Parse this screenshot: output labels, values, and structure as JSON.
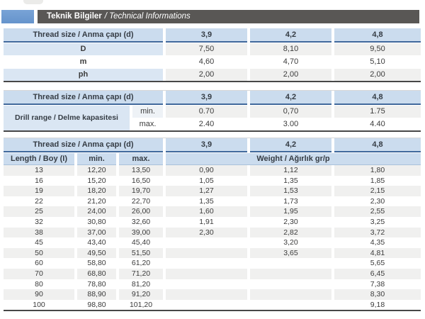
{
  "header": {
    "title_tr": "Teknik Bilgiler",
    "title_en": "/ Technical Informations"
  },
  "colors": {
    "accent_blue": "#79a3d6",
    "accent_blue_2": "#6694cc",
    "bar_gray": "#595755",
    "header_row_blue": "#cbdcee",
    "header_underline_blue": "#41699c",
    "label_cell_blue": "#dae6f3",
    "zebra_gray": "#f0f0ef",
    "table_bottom_border": "#474747"
  },
  "thread": {
    "label": "Thread size / Anma çapı (d)",
    "sizes": [
      "3,9",
      "4,2",
      "4,8"
    ]
  },
  "dimensions_table": {
    "rows": [
      {
        "label": "D",
        "v39": "7,50",
        "v42": "8,10",
        "v48": "9,50"
      },
      {
        "label": "m",
        "v39": "4,60",
        "v42": "4,70",
        "v48": "5,10"
      },
      {
        "label": "ph",
        "v39": "2,00",
        "v42": "2,00",
        "v48": "2,00"
      }
    ]
  },
  "drill_table": {
    "label": "Drill range / Delme kapasitesi",
    "min_label": "min.",
    "max_label": "max.",
    "min": [
      "0.70",
      "0,70",
      "1.75"
    ],
    "max": [
      "2.40",
      "3.00",
      "4.40"
    ]
  },
  "length_table": {
    "length_label": "Length / Boy (I)",
    "min_label": "min.",
    "max_label": "max.",
    "weight_label": "Weight / Ağırlık gr/p",
    "rows": [
      {
        "length": "13",
        "min": "12,20",
        "max": "13,50",
        "w39": "0,90",
        "w42": "1,12",
        "w48": "1,80"
      },
      {
        "length": "16",
        "min": "15,20",
        "max": "16,50",
        "w39": "1,05",
        "w42": "1,35",
        "w48": "1,85"
      },
      {
        "length": "19",
        "min": "18,20",
        "max": "19,70",
        "w39": "1,27",
        "w42": "1,53",
        "w48": "2,15"
      },
      {
        "length": "22",
        "min": "21,20",
        "max": "22,70",
        "w39": "1,35",
        "w42": "1,73",
        "w48": "2,30"
      },
      {
        "length": "25",
        "min": "24,00",
        "max": "26,00",
        "w39": "1,60",
        "w42": "1,95",
        "w48": "2,55"
      },
      {
        "length": "32",
        "min": "30,80",
        "max": "32,60",
        "w39": "1,91",
        "w42": "2,30",
        "w48": "3,25"
      },
      {
        "length": "38",
        "min": "37,00",
        "max": "39,00",
        "w39": "2,30",
        "w42": "2,82",
        "w48": "3,72"
      },
      {
        "length": "45",
        "min": "43,40",
        "max": "45,40",
        "w39": "",
        "w42": "3,20",
        "w48": "4,35"
      },
      {
        "length": "50",
        "min": "49,50",
        "max": "51,50",
        "w39": "",
        "w42": "3,65",
        "w48": "4,81"
      },
      {
        "length": "60",
        "min": "58,80",
        "max": "61,20",
        "w39": "",
        "w42": "",
        "w48": "5,65"
      },
      {
        "length": "70",
        "min": "68,80",
        "max": "71,20",
        "w39": "",
        "w42": "",
        "w48": "6,45"
      },
      {
        "length": "80",
        "min": "78,80",
        "max": "81,20",
        "w39": "",
        "w42": "",
        "w48": "7,38"
      },
      {
        "length": "90",
        "min": "88,90",
        "max": "91,20",
        "w39": "",
        "w42": "",
        "w48": "8,30"
      },
      {
        "length": "100",
        "min": "98,80",
        "max": "101,20",
        "w39": "",
        "w42": "",
        "w48": "9,18"
      }
    ]
  }
}
